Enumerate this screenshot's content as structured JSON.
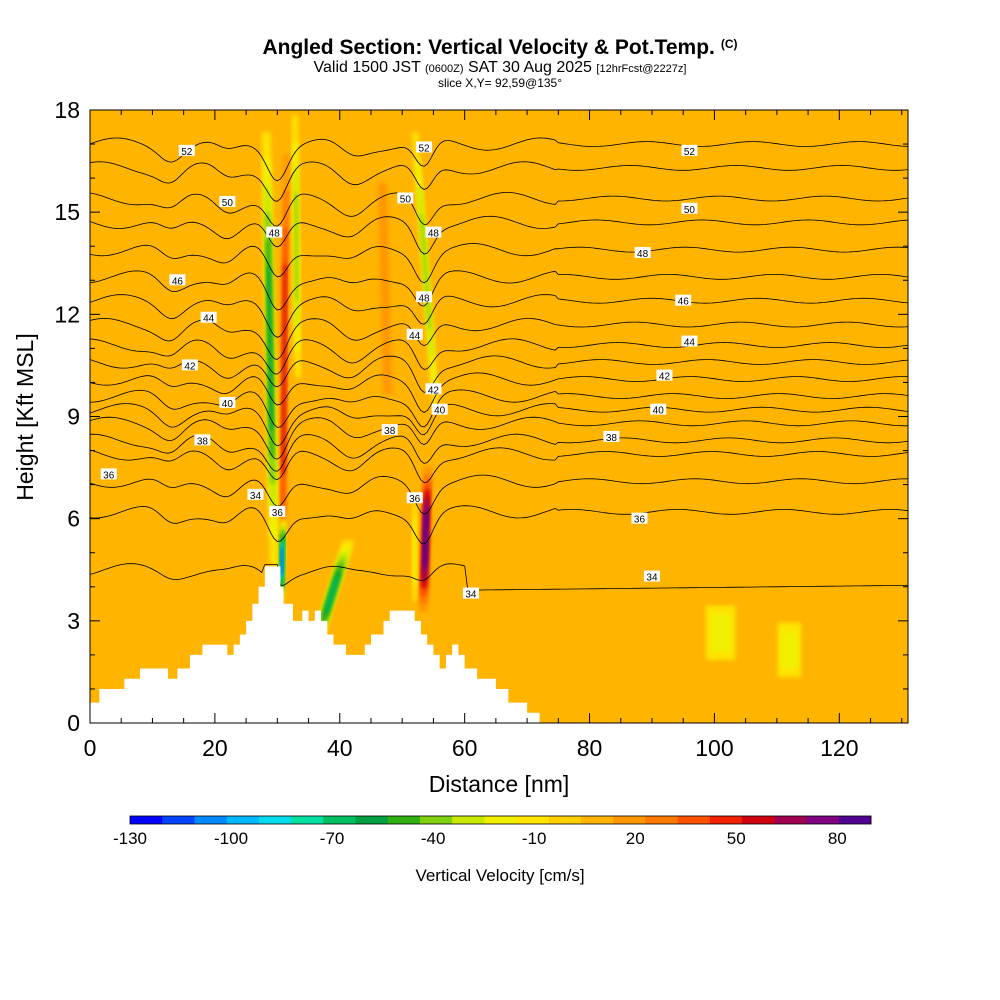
{
  "chart_data": {
    "type": "heatmap",
    "title": "Angled Section: Vertical Velocity & Pot.Temp.",
    "title_mark": "(C)",
    "subtitle": {
      "valid_prefix": "Valid 1500 JST",
      "utc": "(0600Z)",
      "date": "SAT 30 Aug 2025",
      "forecast": "[12hrFcst@2227z]"
    },
    "slice_label": "slice X,Y= 92,59@135°",
    "xlabel": "Distance [nm]",
    "ylabel": "Height [Kft MSL]",
    "xlim": [
      0,
      131
    ],
    "ylim": [
      0,
      18
    ],
    "xticks": [
      0,
      20,
      40,
      60,
      80,
      100,
      120
    ],
    "yticks": [
      0,
      3,
      6,
      9,
      12,
      15,
      18
    ],
    "colorbar": {
      "label": "Vertical Velocity [cm/s]",
      "tick_labels": [
        "-130",
        "-100",
        "-70",
        "-40",
        "-10",
        "20",
        "50",
        "80"
      ],
      "tick_values": [
        -130,
        -100,
        -70,
        -40,
        -10,
        20,
        50,
        80
      ],
      "min": -130,
      "max": 90,
      "colors": [
        "#0000ff",
        "#0044ff",
        "#0088ff",
        "#00b8ff",
        "#00ddee",
        "#00e0a0",
        "#00c060",
        "#00a040",
        "#30b010",
        "#80d010",
        "#c8e800",
        "#f0f000",
        "#ffe400",
        "#ffd000",
        "#ffb400",
        "#ff9600",
        "#ff7800",
        "#ff5000",
        "#f02000",
        "#d00010",
        "#a00050",
        "#800080",
        "#500090"
      ]
    },
    "contour_lines": [
      {
        "theta": 52,
        "h": 17.0
      },
      {
        "theta": 51,
        "h": 16.3
      },
      {
        "theta": 50,
        "h": 15.4
      },
      {
        "theta": 49,
        "h": 14.7
      },
      {
        "theta": 48,
        "h": 13.9
      },
      {
        "theta": 47,
        "h": 13.1
      },
      {
        "theta": 46,
        "h": 12.4
      },
      {
        "theta": 45,
        "h": 11.7
      },
      {
        "theta": 44,
        "h": 11.1
      },
      {
        "theta": 43,
        "h": 10.6
      },
      {
        "theta": 42,
        "h": 10.1
      },
      {
        "theta": 41,
        "h": 9.6
      },
      {
        "theta": 40,
        "h": 9.2
      },
      {
        "theta": 39,
        "h": 8.8
      },
      {
        "theta": 38,
        "h": 8.3
      },
      {
        "theta": 37,
        "h": 7.9
      },
      {
        "theta": 36,
        "h": 7.1
      },
      {
        "theta": 35,
        "h": 6.2
      },
      {
        "theta": 34,
        "h": 4.5
      }
    ],
    "contour_labels": [
      {
        "text": "52",
        "x": 15.5,
        "y": 16.8
      },
      {
        "text": "52",
        "x": 53.5,
        "y": 16.9
      },
      {
        "text": "52",
        "x": 96,
        "y": 16.8
      },
      {
        "text": "50",
        "x": 22,
        "y": 15.3
      },
      {
        "text": "50",
        "x": 50.5,
        "y": 15.4
      },
      {
        "text": "50",
        "x": 96,
        "y": 15.1
      },
      {
        "text": "48",
        "x": 29.5,
        "y": 14.4
      },
      {
        "text": "48",
        "x": 55,
        "y": 14.4
      },
      {
        "text": "48",
        "x": 88.5,
        "y": 13.8
      },
      {
        "text": "48",
        "x": 53.5,
        "y": 12.5
      },
      {
        "text": "46",
        "x": 14,
        "y": 13.0
      },
      {
        "text": "46",
        "x": 95,
        "y": 12.4
      },
      {
        "text": "44",
        "x": 19,
        "y": 11.9
      },
      {
        "text": "44",
        "x": 52,
        "y": 11.4
      },
      {
        "text": "44",
        "x": 96,
        "y": 11.2
      },
      {
        "text": "42",
        "x": 16,
        "y": 10.5
      },
      {
        "text": "42",
        "x": 55,
        "y": 9.8
      },
      {
        "text": "42",
        "x": 92,
        "y": 10.2
      },
      {
        "text": "40",
        "x": 22,
        "y": 9.4
      },
      {
        "text": "40",
        "x": 56,
        "y": 9.2
      },
      {
        "text": "40",
        "x": 91,
        "y": 9.2
      },
      {
        "text": "38",
        "x": 18,
        "y": 8.3
      },
      {
        "text": "38",
        "x": 48,
        "y": 8.6
      },
      {
        "text": "38",
        "x": 83.5,
        "y": 8.4
      },
      {
        "text": "36",
        "x": 3,
        "y": 7.3
      },
      {
        "text": "36",
        "x": 52,
        "y": 6.6
      },
      {
        "text": "36",
        "x": 88,
        "y": 6.0
      },
      {
        "text": "34",
        "x": 26.5,
        "y": 6.7
      },
      {
        "text": "36",
        "x": 30,
        "y": 6.2
      },
      {
        "text": "34",
        "x": 61,
        "y": 3.8
      },
      {
        "text": "34",
        "x": 90,
        "y": 4.3
      }
    ],
    "terrain_kft": [
      [
        0,
        0.6
      ],
      [
        1.5,
        1.0
      ],
      [
        5.5,
        1.3
      ],
      [
        8,
        1.6
      ],
      [
        12.5,
        1.3
      ],
      [
        14,
        1.6
      ],
      [
        16,
        2.0
      ],
      [
        18,
        2.3
      ],
      [
        22,
        2.0
      ],
      [
        23,
        2.3
      ],
      [
        24,
        2.6
      ],
      [
        25,
        3.0
      ],
      [
        26,
        3.5
      ],
      [
        27,
        4.0
      ],
      [
        28,
        4.6
      ],
      [
        30,
        4.6
      ],
      [
        30.5,
        4.0
      ],
      [
        31,
        3.5
      ],
      [
        32.5,
        3.0
      ],
      [
        34,
        3.3
      ],
      [
        35,
        3.0
      ],
      [
        36,
        3.3
      ],
      [
        37,
        3.0
      ],
      [
        38,
        2.6
      ],
      [
        39,
        2.3
      ],
      [
        41,
        2.0
      ],
      [
        44,
        2.3
      ],
      [
        45,
        2.6
      ],
      [
        47,
        3.0
      ],
      [
        48,
        3.3
      ],
      [
        52,
        3.0
      ],
      [
        53,
        2.6
      ],
      [
        54,
        2.3
      ],
      [
        55,
        2.0
      ],
      [
        56,
        1.6
      ],
      [
        57,
        2.0
      ],
      [
        58,
        2.3
      ],
      [
        59,
        2.0
      ],
      [
        60,
        1.6
      ],
      [
        62,
        1.3
      ],
      [
        65,
        1.0
      ],
      [
        67,
        0.6
      ],
      [
        70,
        0.3
      ],
      [
        72,
        0
      ],
      [
        131,
        0
      ]
    ],
    "updrafts": [
      {
        "x": 30.7,
        "x_top": 31.5,
        "y0": 2.8,
        "y1": 18,
        "peak": 60,
        "width": 0.55
      },
      {
        "x": 53.3,
        "x_top": 54.2,
        "y0": 3.0,
        "y1": 7.8,
        "peak": 90,
        "width": 0.75
      },
      {
        "x": 48,
        "x_top": 46.5,
        "y0": 7.5,
        "y1": 18,
        "peak": 25,
        "width": 1.2
      },
      {
        "x": 9,
        "x_top": 8,
        "y0": 1.5,
        "y1": 18,
        "peak": 14,
        "width": 1.4
      },
      {
        "x": 13,
        "x_top": 12,
        "y0": 1.5,
        "y1": 18,
        "peak": 14,
        "width": 1.3
      },
      {
        "x": 21,
        "x_top": 20,
        "y0": 2.5,
        "y1": 17,
        "peak": 12,
        "width": 1.3
      },
      {
        "x": 87,
        "x_top": 86,
        "y0": 0.5,
        "y1": 18,
        "peak": 10,
        "width": 3.5
      },
      {
        "x": 112,
        "x_top": 112,
        "y0": 0.5,
        "y1": 15,
        "peak": 8,
        "width": 3.5
      },
      {
        "x": 127,
        "x_top": 127,
        "y0": 0.3,
        "y1": 3,
        "peak": 20,
        "width": 1.5
      },
      {
        "x": 80,
        "x_top": 80,
        "y0": 0.3,
        "y1": 2.8,
        "peak": 14,
        "width": 0.6
      },
      {
        "x": 97,
        "x_top": 97,
        "y0": 0.3,
        "y1": 2.8,
        "peak": 12,
        "width": 0.6
      }
    ],
    "downdrafts": [
      {
        "x": 29.5,
        "x_top": 28.2,
        "y0": 4.5,
        "y1": 17.5,
        "peak": -70,
        "width": 0.7
      },
      {
        "x": 30.5,
        "x_top": 31,
        "y0": 3.5,
        "y1": 6.0,
        "peak": -115,
        "width": 0.4
      },
      {
        "x": 36,
        "x_top": 41.5,
        "y0": 2.2,
        "y1": 5.4,
        "peak": -75,
        "width": 0.9
      },
      {
        "x": 33.3,
        "x_top": 32.8,
        "y0": 10,
        "y1": 18,
        "peak": -45,
        "width": 0.5
      },
      {
        "x": 55.5,
        "x_top": 52,
        "y0": 9,
        "y1": 17.5,
        "peak": -45,
        "width": 0.5
      },
      {
        "x": 52,
        "x_top": 52,
        "y0": 3.5,
        "y1": 6.5,
        "peak": -30,
        "width": 0.4
      },
      {
        "x": 101,
        "x_top": 101,
        "y0": 1.8,
        "y1": 3.5,
        "peak": -30,
        "width": 2.5
      },
      {
        "x": 112,
        "x_top": 112,
        "y0": 1.3,
        "y1": 3.0,
        "peak": -28,
        "width": 2.0
      }
    ]
  }
}
